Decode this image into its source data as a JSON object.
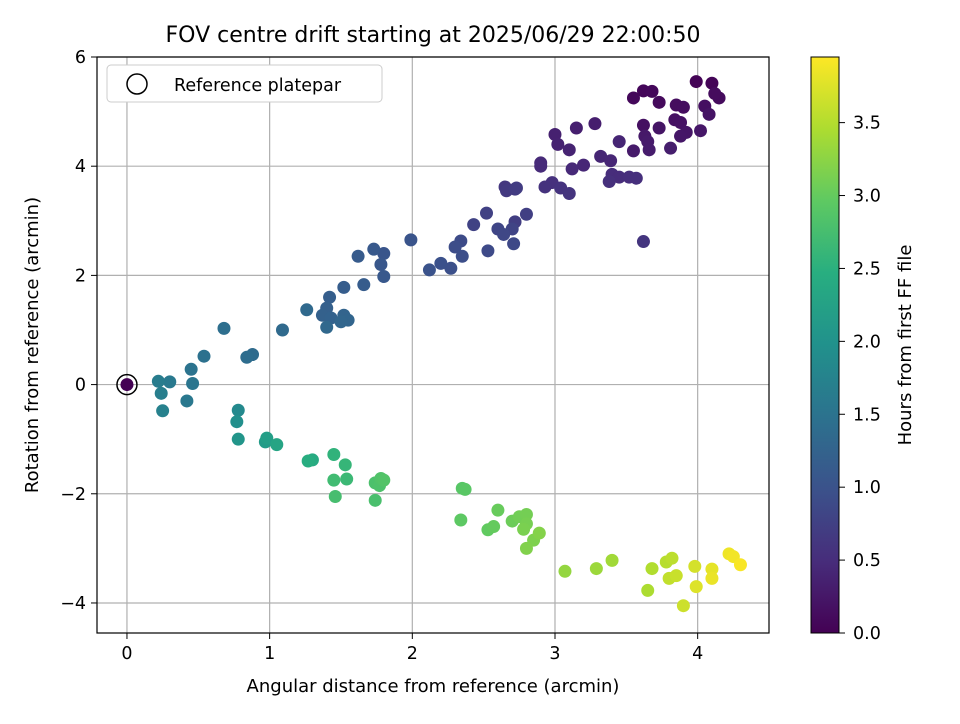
{
  "chart_data": {
    "type": "scatter",
    "title": "FOV centre drift starting at 2025/06/29 22:00:50",
    "xlabel": "Angular distance from reference (arcmin)",
    "ylabel": "Rotation from reference (arcmin)",
    "xlim": [
      -0.21,
      4.5
    ],
    "ylim": [
      -4.55,
      6.0
    ],
    "xticks": [
      0,
      1,
      2,
      3,
      4
    ],
    "yticks": [
      -4,
      -2,
      0,
      2,
      4,
      6
    ],
    "grid": true,
    "legend": {
      "placement": "top-left",
      "entries": [
        "Reference platepar"
      ]
    },
    "reference_point": {
      "x": 0,
      "y": 0,
      "label": "Reference platepar"
    },
    "colorbar": {
      "label": "Hours from first FF file",
      "range": [
        0.0,
        3.95
      ],
      "ticks": [
        0.0,
        0.5,
        1.0,
        1.5,
        2.0,
        2.5,
        3.0,
        3.5
      ],
      "tick_labels": [
        "0.0",
        "0.5",
        "1.0",
        "1.5",
        "2.0",
        "2.5",
        "3.0",
        "3.5"
      ],
      "colormap": "viridis"
    },
    "series": [
      {
        "points": [
          [
            0.0,
            0.0,
            0.0
          ],
          [
            3.99,
            5.55,
            0.03
          ],
          [
            4.1,
            5.52,
            0.04
          ],
          [
            3.62,
            5.38,
            0.06
          ],
          [
            3.68,
            5.37,
            0.07
          ],
          [
            3.55,
            5.25,
            0.08
          ],
          [
            3.73,
            5.17,
            0.1
          ],
          [
            4.15,
            5.25,
            0.11
          ],
          [
            4.12,
            5.33,
            0.12
          ],
          [
            3.85,
            5.12,
            0.13
          ],
          [
            3.9,
            5.08,
            0.14
          ],
          [
            4.05,
            5.1,
            0.16
          ],
          [
            3.62,
            4.75,
            0.17
          ],
          [
            3.84,
            4.85,
            0.18
          ],
          [
            3.88,
            4.8,
            0.19
          ],
          [
            4.08,
            4.95,
            0.2
          ],
          [
            3.73,
            4.7,
            0.22
          ],
          [
            3.92,
            4.62,
            0.23
          ],
          [
            3.88,
            4.55,
            0.24
          ],
          [
            4.02,
            4.65,
            0.25
          ],
          [
            3.63,
            4.55,
            0.27
          ],
          [
            3.55,
            4.28,
            0.28
          ],
          [
            3.65,
            4.45,
            0.29
          ],
          [
            3.66,
            4.3,
            0.3
          ],
          [
            3.81,
            4.33,
            0.32
          ],
          [
            3.28,
            4.78,
            0.33
          ],
          [
            3.15,
            4.7,
            0.34
          ],
          [
            3.0,
            4.58,
            0.36
          ],
          [
            3.02,
            4.4,
            0.37
          ],
          [
            3.1,
            4.3,
            0.38
          ],
          [
            3.45,
            4.45,
            0.4
          ],
          [
            3.32,
            4.18,
            0.41
          ],
          [
            3.39,
            4.1,
            0.42
          ],
          [
            3.2,
            4.02,
            0.43
          ],
          [
            3.12,
            3.95,
            0.45
          ],
          [
            2.9,
            4.06,
            0.46
          ],
          [
            2.9,
            4.0,
            0.47
          ],
          [
            3.4,
            3.85,
            0.49
          ],
          [
            3.45,
            3.8,
            0.5
          ],
          [
            3.52,
            3.8,
            0.51
          ],
          [
            3.57,
            3.78,
            0.52
          ],
          [
            3.38,
            3.72,
            0.54
          ],
          [
            2.98,
            3.7,
            0.55
          ],
          [
            2.93,
            3.62,
            0.56
          ],
          [
            3.04,
            3.6,
            0.58
          ],
          [
            3.1,
            3.5,
            0.59
          ],
          [
            3.62,
            2.62,
            0.6
          ],
          [
            2.65,
            3.62,
            0.63
          ],
          [
            2.66,
            3.55,
            0.66
          ],
          [
            2.72,
            3.58,
            0.68
          ],
          [
            2.73,
            3.6,
            0.7
          ],
          [
            2.72,
            2.98,
            0.72
          ],
          [
            2.8,
            3.12,
            0.74
          ],
          [
            2.52,
            3.14,
            0.76
          ],
          [
            2.43,
            2.93,
            0.78
          ],
          [
            2.7,
            2.85,
            0.8
          ],
          [
            2.6,
            2.85,
            0.82
          ],
          [
            2.64,
            2.75,
            0.84
          ],
          [
            2.71,
            2.58,
            0.86
          ],
          [
            2.53,
            2.45,
            0.88
          ],
          [
            2.34,
            2.63,
            0.9
          ],
          [
            2.3,
            2.52,
            0.92
          ],
          [
            2.35,
            2.35,
            0.94
          ],
          [
            2.27,
            2.13,
            0.96
          ],
          [
            2.2,
            2.22,
            0.98
          ],
          [
            2.12,
            2.1,
            1.0
          ],
          [
            1.99,
            2.65,
            1.02
          ],
          [
            1.8,
            2.4,
            1.04
          ],
          [
            1.78,
            2.2,
            1.06
          ],
          [
            1.8,
            1.98,
            1.08
          ],
          [
            1.73,
            2.48,
            1.1
          ],
          [
            1.62,
            2.35,
            1.12
          ],
          [
            1.66,
            1.83,
            1.14
          ],
          [
            1.52,
            1.78,
            1.16
          ],
          [
            1.42,
            1.6,
            1.18
          ],
          [
            1.4,
            1.4,
            1.2
          ],
          [
            1.37,
            1.27,
            1.22
          ],
          [
            1.43,
            1.22,
            1.24
          ],
          [
            1.52,
            1.27,
            1.26
          ],
          [
            1.55,
            1.18,
            1.28
          ],
          [
            1.5,
            1.15,
            1.3
          ],
          [
            1.4,
            1.05,
            1.32
          ],
          [
            1.26,
            1.37,
            1.34
          ],
          [
            1.09,
            1.0,
            1.36
          ],
          [
            0.88,
            0.55,
            1.38
          ],
          [
            0.84,
            0.5,
            1.4
          ],
          [
            0.68,
            1.03,
            1.43
          ],
          [
            0.54,
            0.52,
            1.47
          ],
          [
            0.45,
            0.28,
            1.5
          ],
          [
            0.46,
            0.02,
            1.53
          ],
          [
            0.42,
            -0.3,
            1.57
          ],
          [
            0.3,
            0.05,
            1.6
          ],
          [
            0.22,
            0.06,
            1.64
          ],
          [
            0.24,
            -0.16,
            1.68
          ],
          [
            0.25,
            -0.48,
            1.72
          ],
          [
            0.78,
            -0.47,
            1.85
          ],
          [
            0.77,
            -0.68,
            1.95
          ],
          [
            0.78,
            -1.0,
            2.05
          ],
          [
            0.97,
            -1.05,
            2.15
          ],
          [
            0.98,
            -0.98,
            2.2
          ],
          [
            1.05,
            -1.1,
            2.3
          ],
          [
            1.3,
            -1.38,
            2.4
          ],
          [
            1.27,
            -1.4,
            2.45
          ],
          [
            1.45,
            -1.28,
            2.55
          ],
          [
            1.53,
            -1.47,
            2.6
          ],
          [
            1.54,
            -1.73,
            2.65
          ],
          [
            1.45,
            -1.75,
            2.7
          ],
          [
            1.46,
            -2.05,
            2.75
          ],
          [
            1.74,
            -2.12,
            2.78
          ],
          [
            1.74,
            -1.8,
            2.8
          ],
          [
            1.77,
            -1.85,
            2.82
          ],
          [
            1.78,
            -1.72,
            2.84
          ],
          [
            1.8,
            -1.75,
            2.86
          ],
          [
            2.35,
            -1.9,
            2.9
          ],
          [
            2.37,
            -1.92,
            2.92
          ],
          [
            2.34,
            -2.48,
            2.95
          ],
          [
            2.53,
            -2.66,
            2.98
          ],
          [
            2.57,
            -2.6,
            3.0
          ],
          [
            2.6,
            -2.3,
            3.02
          ],
          [
            2.7,
            -2.5,
            3.05
          ],
          [
            2.75,
            -2.42,
            3.08
          ],
          [
            2.8,
            -2.38,
            3.1
          ],
          [
            2.8,
            -2.55,
            3.12
          ],
          [
            2.78,
            -2.65,
            3.14
          ],
          [
            2.85,
            -2.85,
            3.16
          ],
          [
            2.8,
            -3.0,
            3.18
          ],
          [
            2.89,
            -2.72,
            3.2
          ],
          [
            3.07,
            -3.42,
            3.3
          ],
          [
            3.29,
            -3.37,
            3.35
          ],
          [
            3.4,
            -3.22,
            3.38
          ],
          [
            3.65,
            -3.77,
            3.45
          ],
          [
            3.68,
            -3.37,
            3.48
          ],
          [
            3.78,
            -3.25,
            3.52
          ],
          [
            3.82,
            -3.18,
            3.55
          ],
          [
            3.8,
            -3.55,
            3.58
          ],
          [
            3.85,
            -3.5,
            3.62
          ],
          [
            3.9,
            -4.05,
            3.65
          ],
          [
            3.98,
            -3.33,
            3.7
          ],
          [
            3.99,
            -3.7,
            3.75
          ],
          [
            4.1,
            -3.38,
            3.8
          ],
          [
            4.1,
            -3.55,
            3.83
          ],
          [
            4.22,
            -3.1,
            3.86
          ],
          [
            4.25,
            -3.15,
            3.88
          ],
          [
            4.3,
            -3.3,
            3.92
          ]
        ]
      }
    ]
  }
}
